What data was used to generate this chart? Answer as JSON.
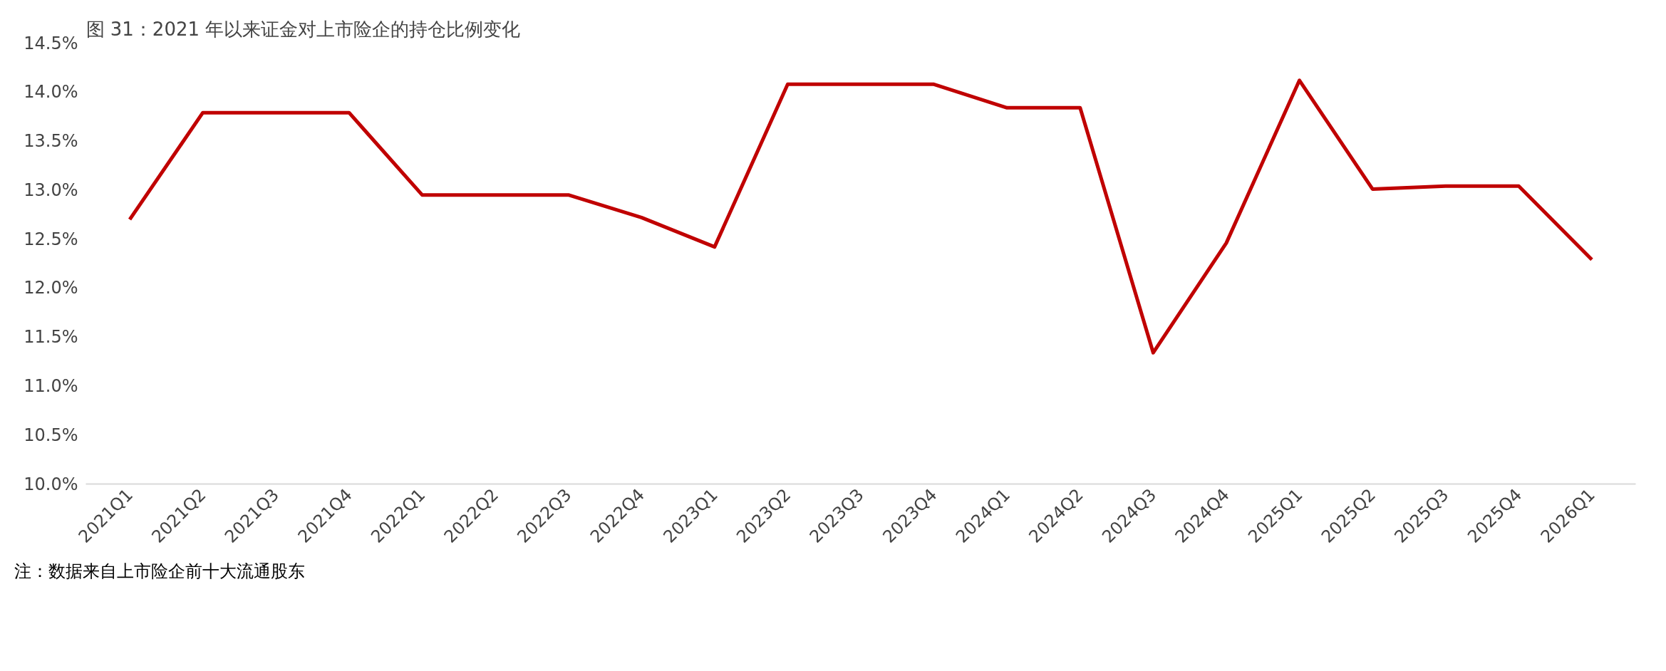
{
  "chart_data": {
    "type": "line",
    "title": "图 31：2021 年以来证金对上市险企的持仓比例变化",
    "categories": [
      "2021Q1",
      "2021Q2",
      "2021Q3",
      "2021Q4",
      "2022Q1",
      "2022Q2",
      "2022Q3",
      "2022Q4",
      "2023Q1",
      "2023Q2",
      "2023Q3",
      "2023Q4",
      "2024Q1",
      "2024Q2",
      "2024Q3",
      "2024Q4",
      "2025Q1",
      "2025Q2",
      "2025Q3",
      "2025Q4",
      "2026Q1"
    ],
    "series": [
      {
        "color": "#c00000",
        "values": [
          12.7,
          13.79,
          13.79,
          13.79,
          12.95,
          12.95,
          12.95,
          12.72,
          12.42,
          14.08,
          14.08,
          14.08,
          13.84,
          13.84,
          11.34,
          12.46,
          14.12,
          13.01,
          13.04,
          13.04,
          12.29
        ]
      }
    ],
    "ylim": [
      10,
      14.5
    ],
    "yticks": [
      {
        "value": 10,
        "label": "10.0%"
      },
      {
        "value": 10.5,
        "label": "10.5%"
      },
      {
        "value": 11,
        "label": "11.0%"
      },
      {
        "value": 11.5,
        "label": "11.5%"
      },
      {
        "value": 12,
        "label": "12.0%"
      },
      {
        "value": 12.5,
        "label": "12.5%"
      },
      {
        "value": 13,
        "label": "13.0%"
      },
      {
        "value": 13.5,
        "label": "13.5%"
      },
      {
        "value": 14,
        "label": "14.0%"
      },
      {
        "value": 14.5,
        "label": "14.5%"
      }
    ],
    "grid": false,
    "marker": "none",
    "line_style": "solid",
    "annotations": [
      "注：数据来自上市险企前十大流通股东"
    ]
  }
}
